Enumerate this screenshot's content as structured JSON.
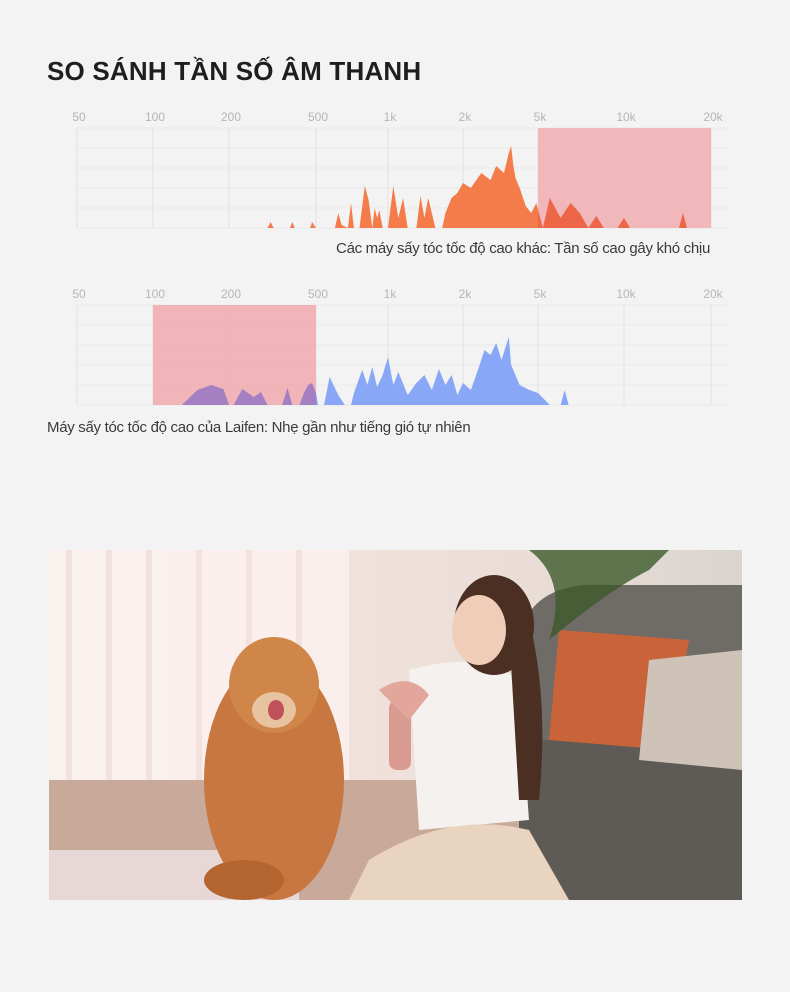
{
  "title": "SO SÁNH TẦN SỐ ÂM THANH",
  "colors": {
    "highlight": "#f0a9ae",
    "competitor": "#f47b4a",
    "competitor_overlap": "#ee6648",
    "laifen": "#88a7f6",
    "laifen_overlap": "#a480c2"
  },
  "chart_data": [
    {
      "type": "area",
      "caption": "Các máy sấy tóc tốc độ cao khác: Tần số cao gây khó chịu",
      "x_ticks": [
        "50",
        "100",
        "200",
        "500",
        "1k",
        "2k",
        "5k",
        "10k",
        "20k"
      ],
      "x_tick_values": [
        50,
        100,
        200,
        500,
        1000,
        2000,
        5000,
        10000,
        20000
      ],
      "xlim": [
        50,
        20000
      ],
      "ylim": [
        0,
        100
      ],
      "highlight_range": [
        5000,
        20000
      ],
      "grid": true,
      "points": [
        [
          300,
          0
        ],
        [
          310,
          6
        ],
        [
          320,
          0
        ],
        [
          380,
          0
        ],
        [
          390,
          6
        ],
        [
          400,
          0
        ],
        [
          470,
          0
        ],
        [
          480,
          6
        ],
        [
          500,
          0
        ],
        [
          600,
          0
        ],
        [
          620,
          15
        ],
        [
          640,
          3
        ],
        [
          680,
          0
        ],
        [
          700,
          25
        ],
        [
          720,
          0
        ],
        [
          760,
          0
        ],
        [
          800,
          42
        ],
        [
          830,
          28
        ],
        [
          860,
          0
        ],
        [
          880,
          20
        ],
        [
          900,
          10
        ],
        [
          920,
          18
        ],
        [
          950,
          0
        ],
        [
          1000,
          0
        ],
        [
          1050,
          42
        ],
        [
          1100,
          10
        ],
        [
          1150,
          30
        ],
        [
          1200,
          0
        ],
        [
          1300,
          0
        ],
        [
          1350,
          32
        ],
        [
          1400,
          10
        ],
        [
          1450,
          30
        ],
        [
          1550,
          0
        ],
        [
          1650,
          0
        ],
        [
          1700,
          15
        ],
        [
          1800,
          30
        ],
        [
          1900,
          35
        ],
        [
          2000,
          45
        ],
        [
          2200,
          40
        ],
        [
          2500,
          55
        ],
        [
          2800,
          48
        ],
        [
          3000,
          62
        ],
        [
          3300,
          55
        ],
        [
          3500,
          75
        ],
        [
          3600,
          82
        ],
        [
          3700,
          62
        ],
        [
          3800,
          50
        ],
        [
          4000,
          40
        ],
        [
          4300,
          22
        ],
        [
          4600,
          15
        ],
        [
          4900,
          25
        ],
        [
          5200,
          0
        ],
        [
          5500,
          30
        ],
        [
          6000,
          10
        ],
        [
          6500,
          25
        ],
        [
          7000,
          15
        ],
        [
          7500,
          0
        ],
        [
          8000,
          12
        ],
        [
          8500,
          0
        ],
        [
          9500,
          0
        ],
        [
          10000,
          10
        ],
        [
          10500,
          0
        ],
        [
          15500,
          0
        ],
        [
          16000,
          15
        ],
        [
          16500,
          0
        ]
      ]
    },
    {
      "type": "area",
      "caption": "Máy sấy tóc tốc độ cao của Laifen: Nhẹ gần như tiếng gió tự nhiên",
      "x_ticks": [
        "50",
        "100",
        "200",
        "500",
        "1k",
        "2k",
        "5k",
        "10k",
        "20k"
      ],
      "x_tick_values": [
        50,
        100,
        200,
        500,
        1000,
        2000,
        5000,
        10000,
        20000
      ],
      "xlim": [
        50,
        20000
      ],
      "ylim": [
        0,
        100
      ],
      "highlight_range": [
        100,
        500
      ],
      "grid": true,
      "points": [
        [
          130,
          0
        ],
        [
          150,
          15
        ],
        [
          170,
          20
        ],
        [
          190,
          16
        ],
        [
          200,
          0
        ],
        [
          210,
          0
        ],
        [
          230,
          16
        ],
        [
          260,
          8
        ],
        [
          280,
          13
        ],
        [
          300,
          0
        ],
        [
          350,
          0
        ],
        [
          370,
          17
        ],
        [
          390,
          0
        ],
        [
          420,
          0
        ],
        [
          440,
          12
        ],
        [
          460,
          20
        ],
        [
          480,
          22
        ],
        [
          500,
          12
        ],
        [
          510,
          0
        ],
        [
          540,
          0
        ],
        [
          570,
          28
        ],
        [
          620,
          10
        ],
        [
          660,
          0
        ],
        [
          700,
          0
        ],
        [
          720,
          12
        ],
        [
          780,
          35
        ],
        [
          820,
          20
        ],
        [
          860,
          38
        ],
        [
          900,
          18
        ],
        [
          950,
          30
        ],
        [
          1000,
          48
        ],
        [
          1050,
          20
        ],
        [
          1100,
          33
        ],
        [
          1200,
          10
        ],
        [
          1300,
          22
        ],
        [
          1400,
          30
        ],
        [
          1500,
          15
        ],
        [
          1600,
          36
        ],
        [
          1700,
          20
        ],
        [
          1800,
          30
        ],
        [
          1900,
          10
        ],
        [
          2000,
          22
        ],
        [
          2200,
          15
        ],
        [
          2400,
          35
        ],
        [
          2600,
          55
        ],
        [
          2800,
          50
        ],
        [
          3000,
          62
        ],
        [
          3200,
          45
        ],
        [
          3500,
          68
        ],
        [
          3600,
          40
        ],
        [
          4000,
          20
        ],
        [
          4500,
          15
        ],
        [
          5000,
          12
        ],
        [
          5500,
          0
        ],
        [
          6000,
          0
        ],
        [
          6200,
          15
        ],
        [
          6400,
          0
        ]
      ]
    }
  ]
}
